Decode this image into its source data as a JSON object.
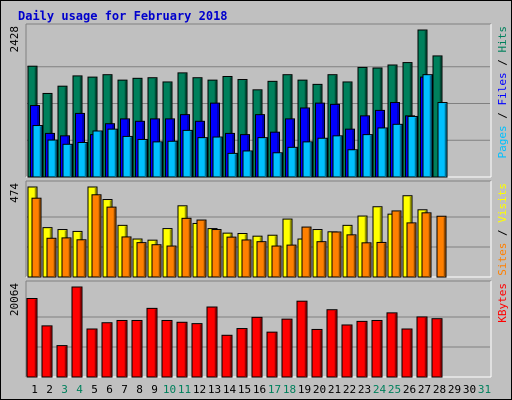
{
  "chart_data": {
    "type": "bar",
    "title": "Daily usage for February 2018",
    "categories": [
      "1",
      "2",
      "3",
      "4",
      "5",
      "6",
      "7",
      "8",
      "9",
      "10",
      "11",
      "12",
      "13",
      "14",
      "15",
      "16",
      "17",
      "18",
      "19",
      "20",
      "21",
      "22",
      "23",
      "24",
      "25",
      "26",
      "27",
      "28",
      "29",
      "30",
      "31"
    ],
    "weekend_days": [
      "3",
      "4",
      "10",
      "11",
      "17",
      "18",
      "24",
      "25",
      "31"
    ],
    "colors": {
      "hits": "#00805c",
      "files": "#0000ff",
      "pages": "#00c0ff",
      "visits": "#ffff00",
      "sites": "#ff8000",
      "kbytes": "#ff0000",
      "weekday_label": "#000000",
      "weekend_label": "#00805c",
      "title": "#0000cc",
      "background": "#c0c0c0"
    },
    "panels": [
      {
        "id": "hits-files-pages",
        "ymax": 2428,
        "ymax_label": "2428",
        "axis_label_parts": [
          {
            "text": "Pages",
            "color": "#00c0ff"
          },
          {
            "text": " / ",
            "color": "#000000"
          },
          {
            "text": "Files",
            "color": "#0000ff"
          },
          {
            "text": " / ",
            "color": "#000000"
          },
          {
            "text": "Hits",
            "color": "#00805c"
          }
        ],
        "series": [
          {
            "name": "Hits",
            "color": "#00805c",
            "values": [
              1830,
              1380,
              1500,
              1670,
              1650,
              1690,
              1600,
              1630,
              1640,
              1570,
              1720,
              1640,
              1600,
              1660,
              1610,
              1440,
              1580,
              1690,
              1600,
              1530,
              1690,
              1570,
              1810,
              1800,
              1850,
              1890,
              2428,
              2000,
              0,
              0,
              0
            ]
          },
          {
            "name": "Files",
            "color": "#0000ff",
            "values": [
              1180,
              720,
              680,
              1050,
              700,
              880,
              960,
              920,
              960,
              960,
              1030,
              920,
              1220,
              720,
              700,
              1030,
              740,
              960,
              1140,
              1220,
              1200,
              790,
              1010,
              1100,
              1230,
              1010,
              1650,
              0,
              0,
              0,
              0
            ]
          },
          {
            "name": "Pages",
            "color": "#00c0ff",
            "values": [
              850,
              610,
              540,
              570,
              760,
              790,
              670,
              620,
              580,
              590,
              770,
              650,
              660,
              390,
              430,
              650,
              400,
              490,
              580,
              640,
              680,
              450,
              700,
              810,
              870,
              1000,
              1690,
              1230,
              0,
              0,
              0
            ]
          }
        ]
      },
      {
        "id": "visits-sites",
        "ymax": 474,
        "ymax_label": "474",
        "axis_label_parts": [
          {
            "text": "Sites",
            "color": "#ff8000"
          },
          {
            "text": " / ",
            "color": "#000000"
          },
          {
            "text": "Visits",
            "color": "#ffff00"
          }
        ],
        "series": [
          {
            "name": "Visits",
            "color": "#ffff00",
            "values": [
              474,
              260,
              250,
              240,
              474,
              408,
              272,
              200,
              194,
              255,
              375,
              282,
              255,
              231,
              229,
              215,
              220,
              305,
              200,
              250,
              238,
              272,
              321,
              370,
              331,
              428,
              354,
              0,
              0,
              0,
              0
            ]
          },
          {
            "name": "Sites",
            "color": "#ff8000",
            "values": [
              415,
              204,
              206,
              196,
              433,
              368,
              211,
              181,
              170,
              163,
              309,
              300,
              250,
              210,
              195,
              186,
              163,
              168,
              263,
              186,
              237,
              222,
              180,
              182,
              348,
              285,
              338,
              320,
              0,
              0,
              0
            ]
          }
        ]
      },
      {
        "id": "kbytes",
        "ymax": 20064,
        "ymax_label": "20064",
        "axis_label_parts": [
          {
            "text": "KBytes",
            "color": "#ff0000"
          }
        ],
        "series": [
          {
            "name": "KBytes",
            "color": "#ff0000",
            "values": [
              17500,
              11400,
              7000,
              20064,
              10700,
              12100,
              12600,
              12600,
              15300,
              12600,
              12200,
              11900,
              15600,
              9300,
              10800,
              13300,
              10000,
              12900,
              16900,
              10600,
              15000,
              11600,
              12400,
              12600,
              14300,
              10700,
              13400,
              13000,
              0,
              0,
              0
            ]
          }
        ]
      }
    ]
  }
}
